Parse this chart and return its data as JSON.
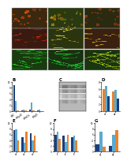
{
  "panel_a": {
    "img_colors": [
      [
        "#3A2810",
        "#2A3A10",
        "#2A2A10"
      ],
      [
        "#3A1A10",
        "#2A3510",
        "#3A2010"
      ],
      [
        "#1A3A10",
        "#1A3010",
        "#1A3510"
      ]
    ],
    "fiber_colors_row0": [
      "#CC5520",
      "#AA7720",
      "#994420"
    ],
    "fiber_colors_row1": [
      "#DD4410",
      "#CCCC30",
      "#DDAA20"
    ],
    "fiber_colors_row2": [
      "#44AA22",
      "#55CC33",
      "#88CC44"
    ]
  },
  "panel_b": {
    "groups": [
      "siNC",
      "siMyoD",
      "siMef2c",
      "siMyf5"
    ],
    "colors": [
      "#1A3F7A",
      "#5BAAD0",
      "#E8832E"
    ],
    "values": [
      [
        9.0,
        0.4,
        0.5,
        0.4
      ],
      [
        3.5,
        0.7,
        3.0,
        0.5
      ],
      [
        0.3,
        0.2,
        0.3,
        0.15
      ]
    ],
    "ylim": [
      0,
      10
    ]
  },
  "panel_d": {
    "groups": [
      "d1",
      "d2"
    ],
    "colors": [
      "#E8832E",
      "#5BAAD0",
      "#1A3F7A"
    ],
    "values": [
      [
        6.0,
        5.5
      ],
      [
        7.0,
        5.8
      ],
      [
        4.2,
        3.5
      ]
    ],
    "ylim": [
      0,
      8
    ]
  },
  "panel_e": {
    "groups": [
      "e1",
      "e2",
      "e3"
    ],
    "colors": [
      "#1A3F7A",
      "#5BAAD0",
      "#E8832E"
    ],
    "values": [
      [
        7.5,
        5.0,
        6.5
      ],
      [
        8.0,
        3.0,
        4.0
      ],
      [
        4.0,
        7.0,
        5.5
      ]
    ],
    "ylim": [
      0,
      10
    ]
  },
  "panel_f": {
    "groups": [
      "f1",
      "f2",
      "f3"
    ],
    "colors": [
      "#1A3F7A",
      "#5BAAD0",
      "#E8832E"
    ],
    "values": [
      [
        6.0,
        5.5,
        5.0
      ],
      [
        7.0,
        3.5,
        5.5
      ],
      [
        4.5,
        6.0,
        4.0
      ]
    ],
    "ylim": [
      0,
      10
    ]
  },
  "panel_g": {
    "groups": [
      "g1",
      "g2"
    ],
    "colors": [
      "#1A3F7A",
      "#5BAAD0",
      "#E8832E"
    ],
    "values": [
      [
        2.5,
        2.0
      ],
      [
        7.0,
        6.0
      ],
      [
        1.8,
        7.5
      ]
    ],
    "ylim": [
      0,
      10
    ]
  },
  "bg_color": "#FFFFFF"
}
